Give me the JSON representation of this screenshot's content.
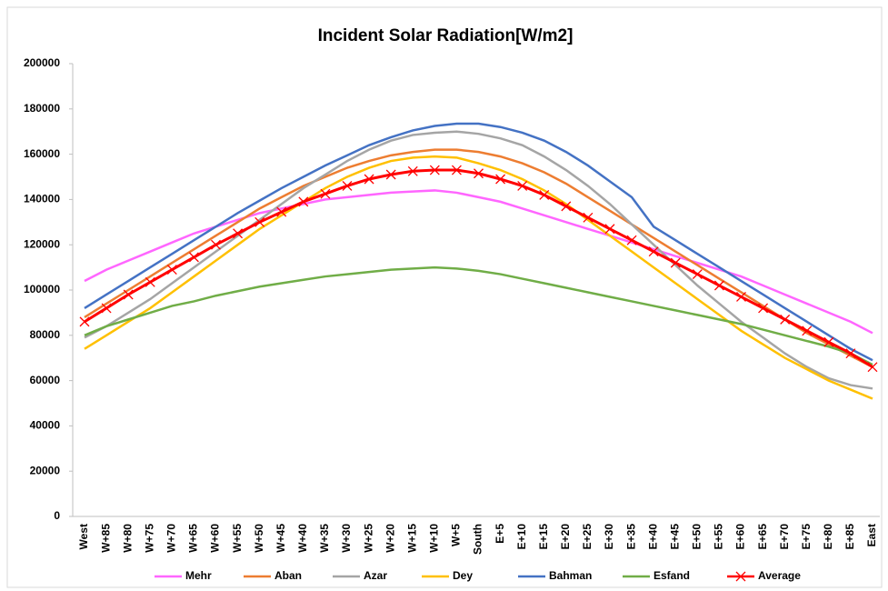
{
  "chart_data": {
    "type": "line",
    "title": "Incident Solar Radiation[W/m2]",
    "categories": [
      "West",
      "W+85",
      "W+80",
      "W+75",
      "W+70",
      "W+65",
      "W+60",
      "W+55",
      "W+50",
      "W+45",
      "W+40",
      "W+35",
      "W+30",
      "W+25",
      "W+20",
      "W+15",
      "W+10",
      "W+5",
      "South",
      "E+5",
      "E+10",
      "E+15",
      "E+20",
      "E+25",
      "E+30",
      "E+35",
      "E+40",
      "E+45",
      "E+50",
      "E+55",
      "E+60",
      "E+65",
      "E+70",
      "E+75",
      "E+80",
      "E+85",
      "East"
    ],
    "series": [
      {
        "name": "Mehr",
        "color": "#ff66ff",
        "values": [
          104000,
          109000,
          113000,
          117000,
          121000,
          125000,
          128000,
          131000,
          134000,
          136000,
          138000,
          140000,
          141000,
          142000,
          143000,
          143500,
          144000,
          143000,
          141000,
          139000,
          136000,
          133000,
          130000,
          127000,
          124000,
          121000,
          118000,
          115000,
          112000,
          109000,
          106000,
          102000,
          98000,
          94000,
          90000,
          86000,
          81000
        ]
      },
      {
        "name": "Aban",
        "color": "#ed7d31",
        "values": [
          88000,
          94000,
          100000,
          106000,
          112000,
          118000,
          124000,
          130000,
          136000,
          141000,
          146000,
          150000,
          154000,
          157000,
          159500,
          161000,
          162000,
          162000,
          161000,
          159000,
          156000,
          152000,
          147000,
          141000,
          135000,
          129000,
          123000,
          117000,
          111000,
          105000,
          99000,
          93000,
          87000,
          81000,
          76000,
          71000,
          66000
        ]
      },
      {
        "name": "Azar",
        "color": "#a5a5a5",
        "values": [
          79000,
          84000,
          90000,
          96000,
          103000,
          110000,
          117000,
          124000,
          131000,
          138000,
          145000,
          151000,
          157000,
          162000,
          166000,
          168500,
          169500,
          170000,
          169000,
          167000,
          164000,
          159000,
          153000,
          146000,
          138000,
          129000,
          120000,
          111000,
          102000,
          94000,
          86000,
          79000,
          72000,
          66000,
          61000,
          58000,
          56500
        ]
      },
      {
        "name": "Dey",
        "color": "#ffc000",
        "values": [
          74000,
          80000,
          86000,
          92000,
          99000,
          106000,
          113000,
          120000,
          127000,
          133000,
          139000,
          145000,
          150000,
          154000,
          157000,
          158500,
          159000,
          158500,
          156000,
          153000,
          149000,
          144000,
          138000,
          131000,
          124000,
          117000,
          110000,
          103000,
          96000,
          89000,
          82000,
          76000,
          70000,
          65000,
          60000,
          56000,
          52000
        ]
      },
      {
        "name": "Bahman",
        "color": "#4472c4",
        "values": [
          92000,
          98000,
          104000,
          110000,
          116000,
          122000,
          128000,
          134000,
          139500,
          145000,
          150000,
          155000,
          159500,
          164000,
          167500,
          170500,
          172500,
          173500,
          173500,
          172000,
          169500,
          166000,
          161000,
          155000,
          148000,
          141000,
          128000,
          122000,
          116000,
          110000,
          104000,
          98000,
          92000,
          86000,
          80000,
          74000,
          69000
        ]
      },
      {
        "name": "Esfand",
        "color": "#70ad47",
        "values": [
          80000,
          84000,
          87000,
          90000,
          93000,
          95000,
          97500,
          99500,
          101500,
          103000,
          104500,
          106000,
          107000,
          108000,
          109000,
          109500,
          110000,
          109500,
          108500,
          107000,
          105000,
          103000,
          101000,
          99000,
          97000,
          95000,
          93000,
          91000,
          89000,
          87000,
          85000,
          82500,
          80000,
          77500,
          75000,
          72000,
          67000
        ]
      },
      {
        "name": "Average",
        "color": "#ff0000",
        "marker": "x",
        "values": [
          86000,
          92000,
          98000,
          103500,
          109000,
          114500,
          120000,
          125000,
          130000,
          134500,
          139000,
          142500,
          146000,
          149000,
          151000,
          152500,
          153000,
          153000,
          151500,
          149000,
          146000,
          142000,
          137000,
          132000,
          127000,
          122000,
          117000,
          112000,
          107000,
          102000,
          97000,
          92000,
          87000,
          82000,
          77000,
          72000,
          66000
        ]
      }
    ],
    "ylim": [
      0,
      200000
    ],
    "yticks": [
      0,
      20000,
      40000,
      60000,
      80000,
      100000,
      120000,
      140000,
      160000,
      180000,
      200000
    ],
    "grid": false
  }
}
